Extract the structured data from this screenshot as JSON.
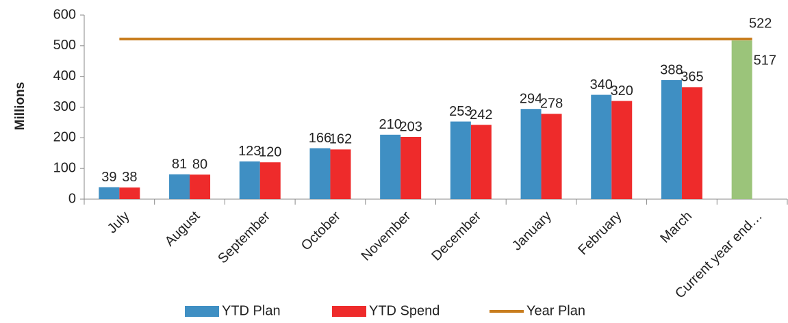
{
  "chart_data": {
    "type": "bar",
    "y_axis_label": "Millions",
    "categories": [
      "July",
      "August",
      "September",
      "October",
      "November",
      "December",
      "January",
      "February",
      "March",
      "Current year end…"
    ],
    "series": [
      {
        "name": "YTD Plan",
        "type": "bar",
        "color": "#3f8fc3",
        "point_colors": [
          null,
          null,
          null,
          null,
          null,
          null,
          null,
          null,
          null,
          "#9bc47a"
        ],
        "values": [
          39,
          81,
          123,
          166,
          210,
          253,
          294,
          340,
          388,
          517
        ]
      },
      {
        "name": "YTD Spend",
        "type": "bar",
        "color": "#ee2b2b",
        "values": [
          38,
          80,
          120,
          162,
          203,
          242,
          278,
          320,
          365,
          null
        ]
      },
      {
        "name": "Year Plan",
        "type": "line",
        "color": "#c87d1e",
        "values": [
          522,
          522,
          522,
          522,
          522,
          522,
          522,
          522,
          522,
          522
        ],
        "value_labels": [
          null,
          null,
          null,
          null,
          null,
          null,
          null,
          null,
          null,
          "522"
        ]
      }
    ],
    "ylim": [
      0,
      600
    ],
    "yticks": [
      0,
      100,
      200,
      300,
      400,
      500,
      600
    ],
    "grid": false,
    "legend": "bottom"
  }
}
